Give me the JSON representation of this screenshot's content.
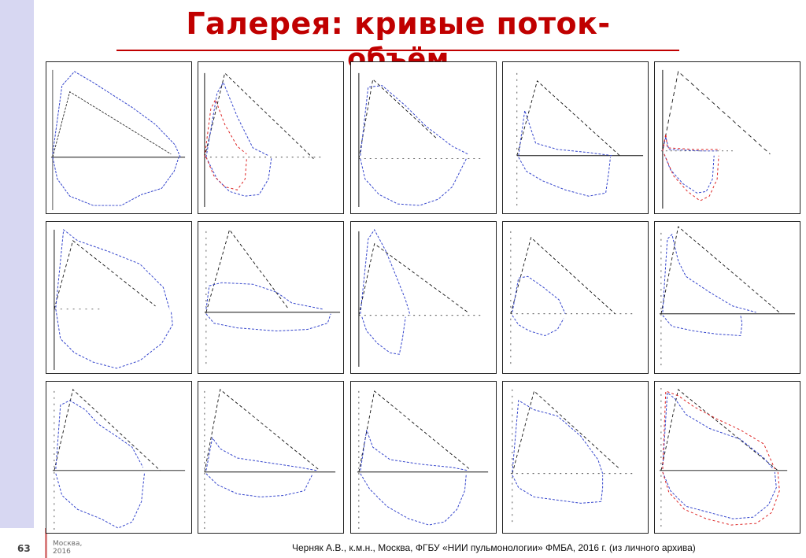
{
  "slide": {
    "title_line1": "Галерея: кривые поток-",
    "title_line2": "объём",
    "page_number": "63",
    "city": "Москва,",
    "year": "2016",
    "footer": "Черняк А.В., к.м.н., Москва, ФГБУ «НИИ пульмонологии» ФМБА, 2016 г. (из личного архива)"
  },
  "gallery": {
    "rows": 3,
    "columns": 5,
    "colors": {
      "blue": "#3344cc",
      "black": "#111111",
      "red": "#dd2222",
      "axis": "#111111"
    }
  }
}
